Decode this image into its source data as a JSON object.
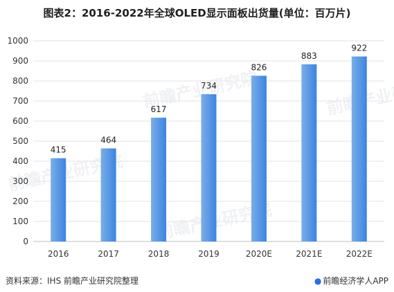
{
  "header": {
    "title": "图表2：2016-2022年全球OLED显示面板出货量(单位：百万片)"
  },
  "footer": {
    "source": "资料来源：IHS 前瞻产业研究院整理",
    "brand": "前瞻经济学人APP"
  },
  "watermark": "前瞻产业研究院",
  "colors": {
    "bar_start": "#7aaee8",
    "bar_end": "#3d84e0",
    "grid": "#e3e3e3"
  },
  "chart_data": {
    "type": "bar",
    "title": "图表2：2016-2022年全球OLED显示面板出货量(单位：百万片)",
    "categories": [
      "2016",
      "2017",
      "2018",
      "2019",
      "2020E",
      "2021E",
      "2022E"
    ],
    "values": [
      415,
      464,
      617,
      734,
      826,
      883,
      922
    ],
    "ylim": [
      0,
      1000
    ],
    "yticks": [
      "0",
      "100",
      "200",
      "300",
      "400",
      "500",
      "600",
      "700",
      "800",
      "900",
      "1000"
    ],
    "grid": true,
    "legend": "none"
  }
}
